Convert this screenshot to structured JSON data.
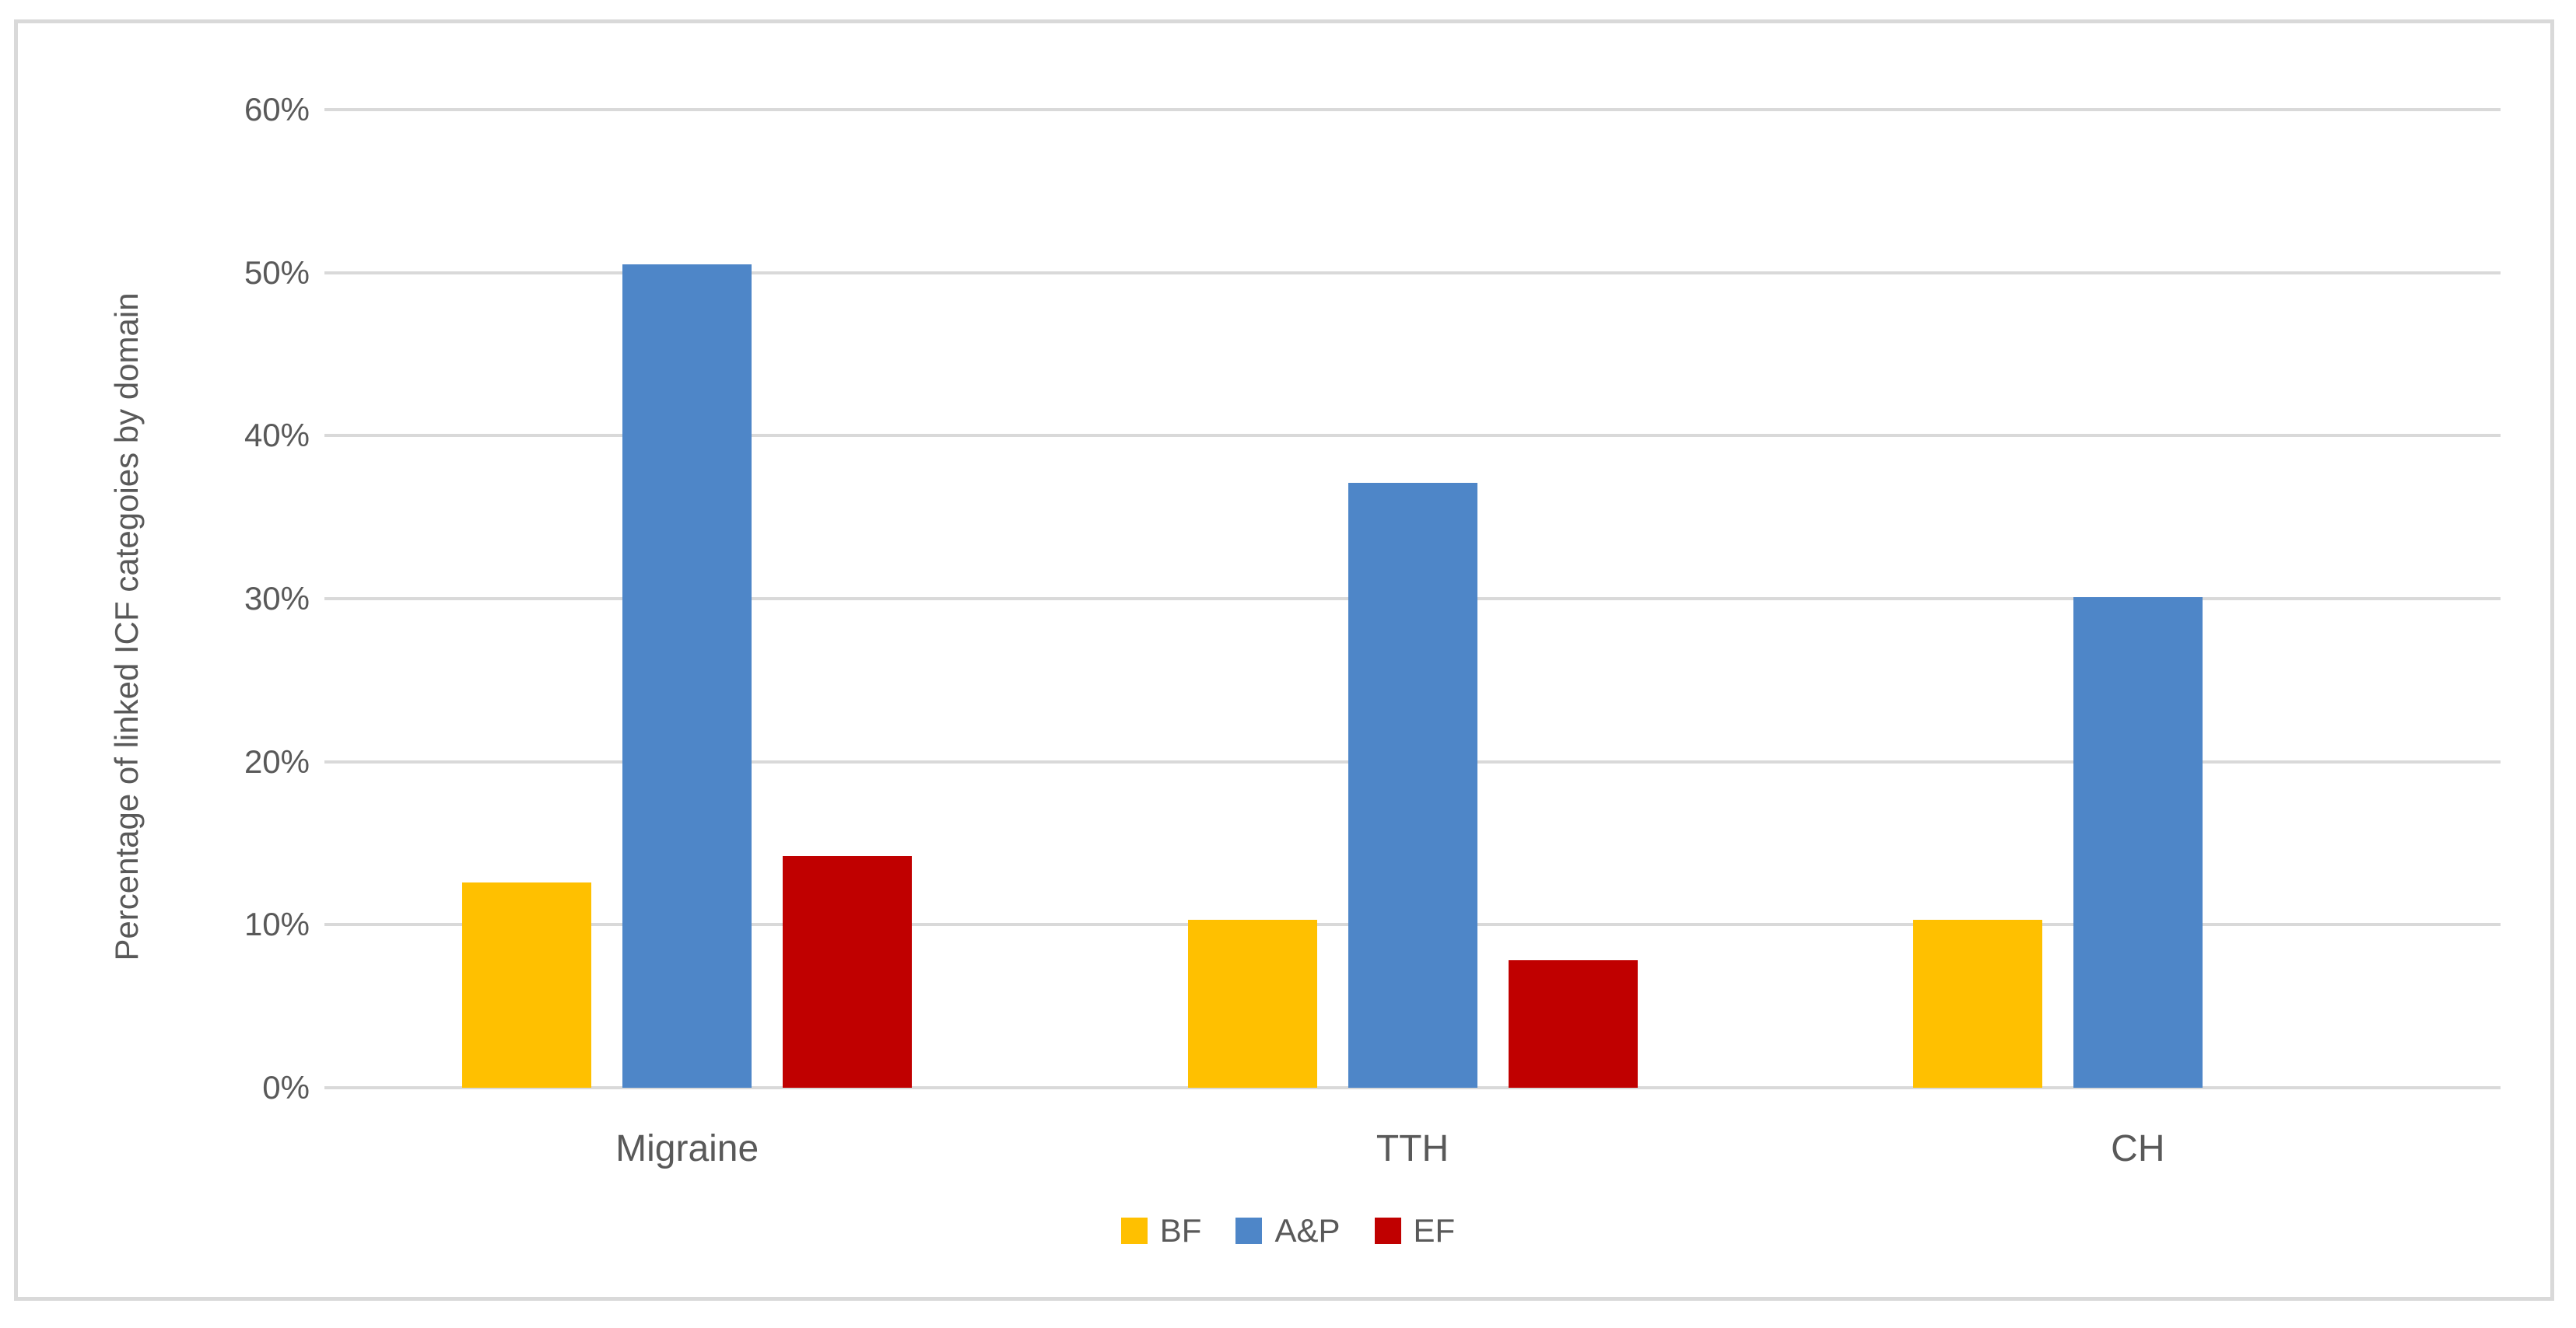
{
  "chart_data": {
    "type": "bar",
    "title": "",
    "xlabel": "",
    "ylabel": "Percentage of linked ICF categoies by domain",
    "categories": [
      "Migraine",
      "TTH",
      "CH"
    ],
    "series": [
      {
        "name": "BF",
        "color": "#FFC000",
        "values": [
          12.6,
          10.3,
          10.3
        ]
      },
      {
        "name": "A&P",
        "color": "#4E86C8",
        "values": [
          50.5,
          37.1,
          30.1
        ]
      },
      {
        "name": "EF",
        "color": "#C00000",
        "values": [
          14.2,
          7.8,
          0
        ]
      }
    ],
    "ylim": [
      0,
      60
    ],
    "ytick_step": 10,
    "ytick_labels": [
      "0%",
      "10%",
      "20%",
      "30%",
      "40%",
      "50%",
      "60%"
    ],
    "grid": true,
    "legend_position": "bottom",
    "colors": {
      "gridline": "#D9D9D9",
      "frame_border": "#D9D9D9",
      "axis_text": "#595959",
      "background": "#FFFFFF"
    }
  }
}
